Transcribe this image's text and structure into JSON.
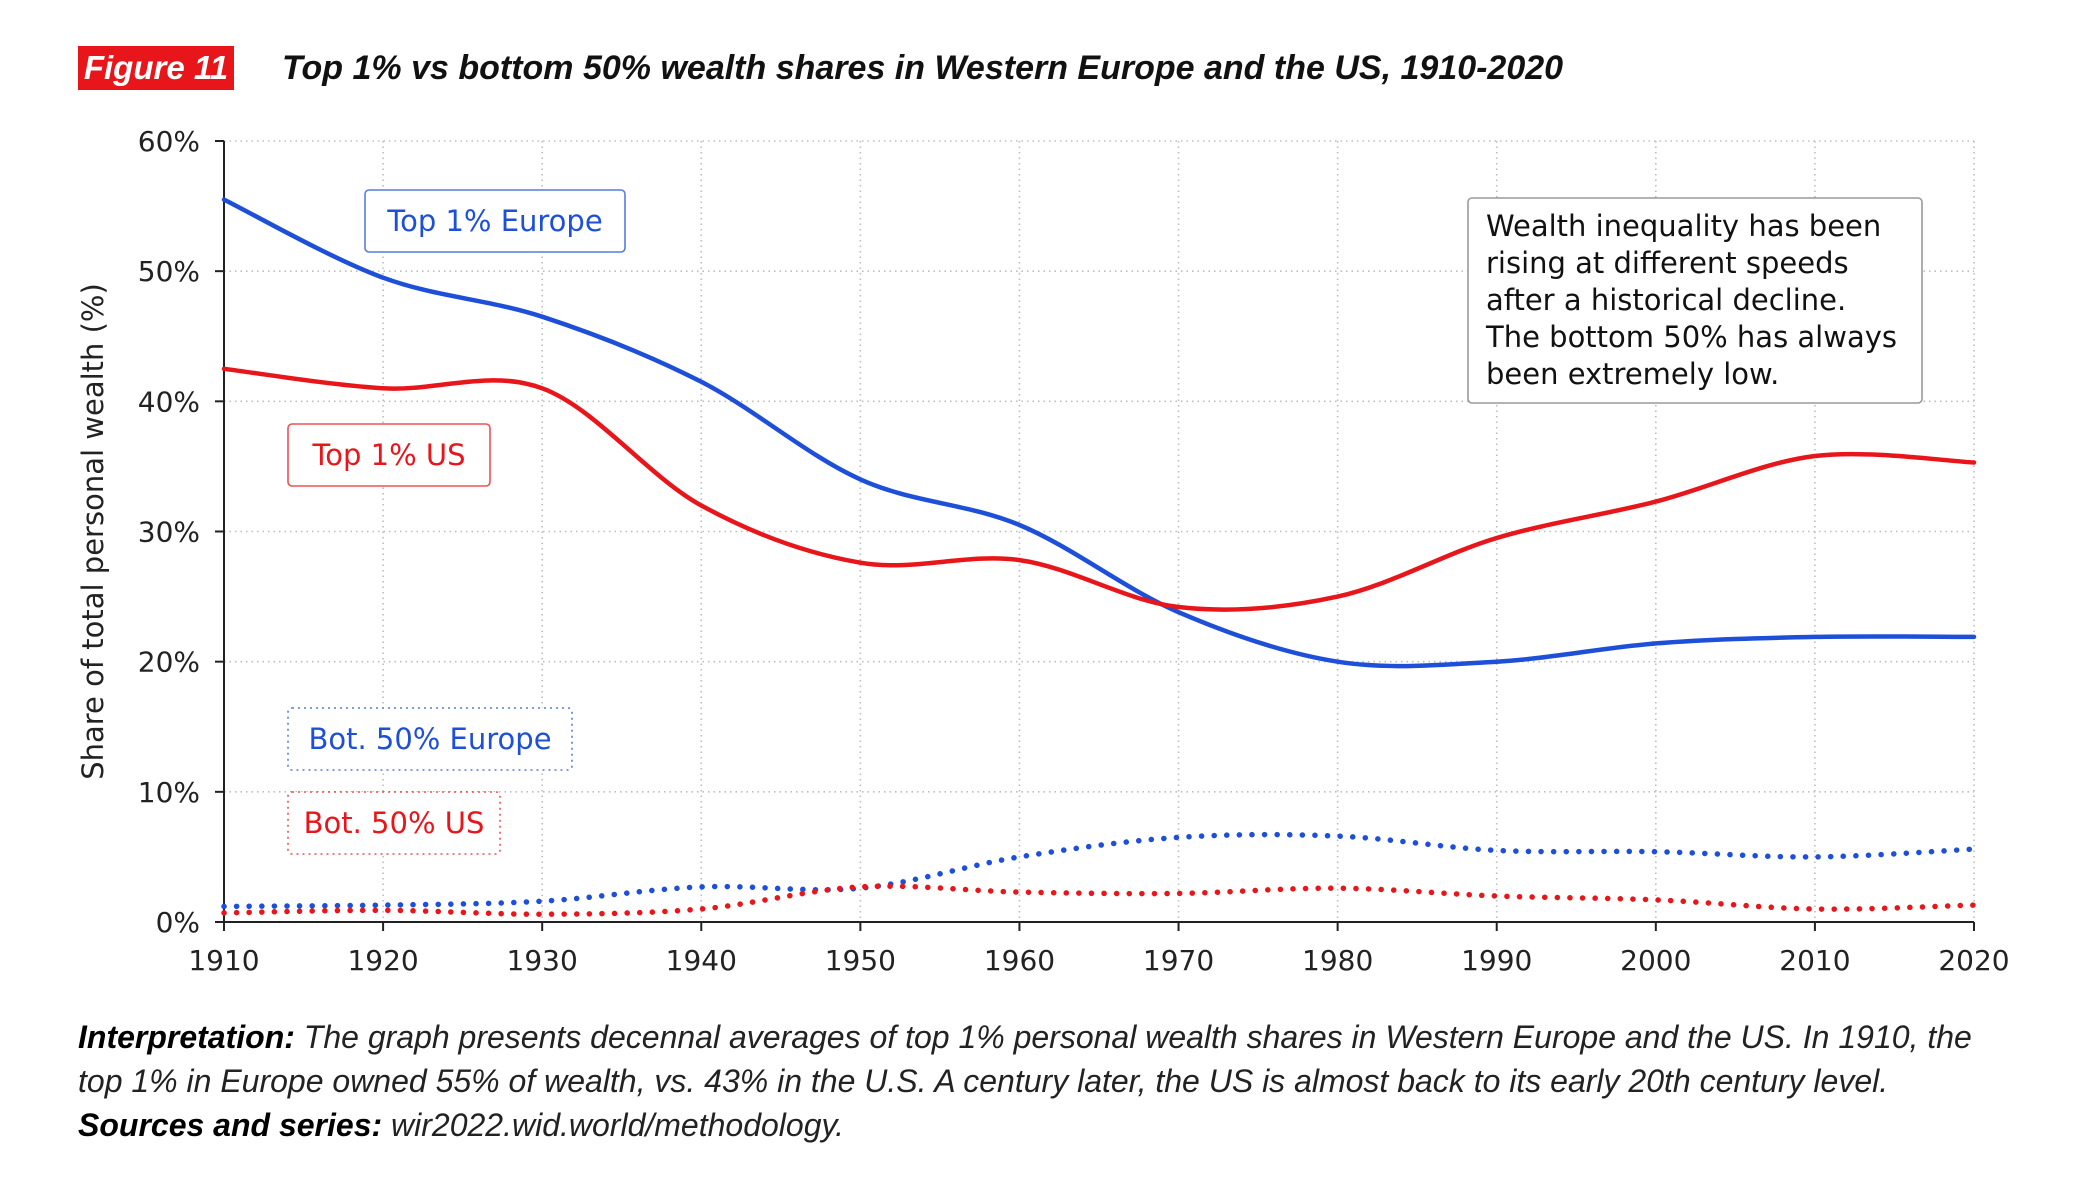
{
  "header": {
    "figure_label": "Figure 11",
    "title": "Top 1% vs bottom 50% wealth shares in Western Europe and the US, 1910-2020"
  },
  "chart_data": {
    "type": "line",
    "title": "Top 1% vs bottom 50% wealth shares in Western Europe and the US, 1910-2020",
    "xlabel": "",
    "ylabel": "Share of total personal wealth (%)",
    "xlim": [
      1910,
      2020
    ],
    "ylim": [
      0,
      60
    ],
    "x_ticks": [
      1910,
      1920,
      1930,
      1940,
      1950,
      1960,
      1970,
      1980,
      1990,
      2000,
      2010,
      2020
    ],
    "x_tick_labels": [
      "1910",
      "1920",
      "1930",
      "1940",
      "1950",
      "1960",
      "1970",
      "1980",
      "1990",
      "2000",
      "2010",
      "2020"
    ],
    "y_ticks": [
      0,
      10,
      20,
      30,
      40,
      50,
      60
    ],
    "y_tick_labels": [
      "0%",
      "10%",
      "20%",
      "30%",
      "40%",
      "50%",
      "60%"
    ],
    "grid": "dotted",
    "x": [
      1910,
      1920,
      1930,
      1940,
      1950,
      1960,
      1970,
      1980,
      1990,
      2000,
      2010,
      2020
    ],
    "series": [
      {
        "name": "Top 1% Europe",
        "style": "solid",
        "color": "#1e4fd8",
        "values": [
          55.5,
          49.5,
          46.5,
          41.5,
          34.0,
          30.5,
          23.8,
          20.0,
          20.0,
          21.4,
          21.9,
          21.9
        ]
      },
      {
        "name": "Top 1% US",
        "style": "solid",
        "color": "#e8151b",
        "values": [
          42.5,
          41.0,
          41.0,
          32.0,
          27.6,
          27.8,
          24.2,
          25.0,
          29.5,
          32.3,
          35.8,
          35.3
        ]
      },
      {
        "name": "Bot. 50% Europe",
        "style": "dotted",
        "color": "#1e4fd8",
        "values": [
          1.2,
          1.3,
          1.6,
          2.7,
          2.6,
          5.0,
          6.5,
          6.6,
          5.5,
          5.4,
          5.0,
          5.6
        ]
      },
      {
        "name": "Bot. 50% US",
        "style": "dotted",
        "color": "#e8151b",
        "values": [
          0.7,
          0.9,
          0.6,
          1.0,
          2.7,
          2.3,
          2.2,
          2.6,
          2.0,
          1.7,
          1.0,
          1.3
        ]
      }
    ],
    "annotation": "Wealth inequality has been rising at different speeds after a historical decline. The bottom 50% has always been extremely low."
  },
  "note": {
    "interpretation_label": "Interpretation:",
    "interpretation_text": " The graph presents decennal averages of top 1% personal wealth shares in Western Europe and the US. In 1910, the top 1% in Europe owned 55% of wealth, vs. 43% in the U.S. A century later, the US is almost back to its early 20th century level. ",
    "sources_label": "Sources and series:",
    "sources_text": " wir2022.wid.world/methodology."
  }
}
